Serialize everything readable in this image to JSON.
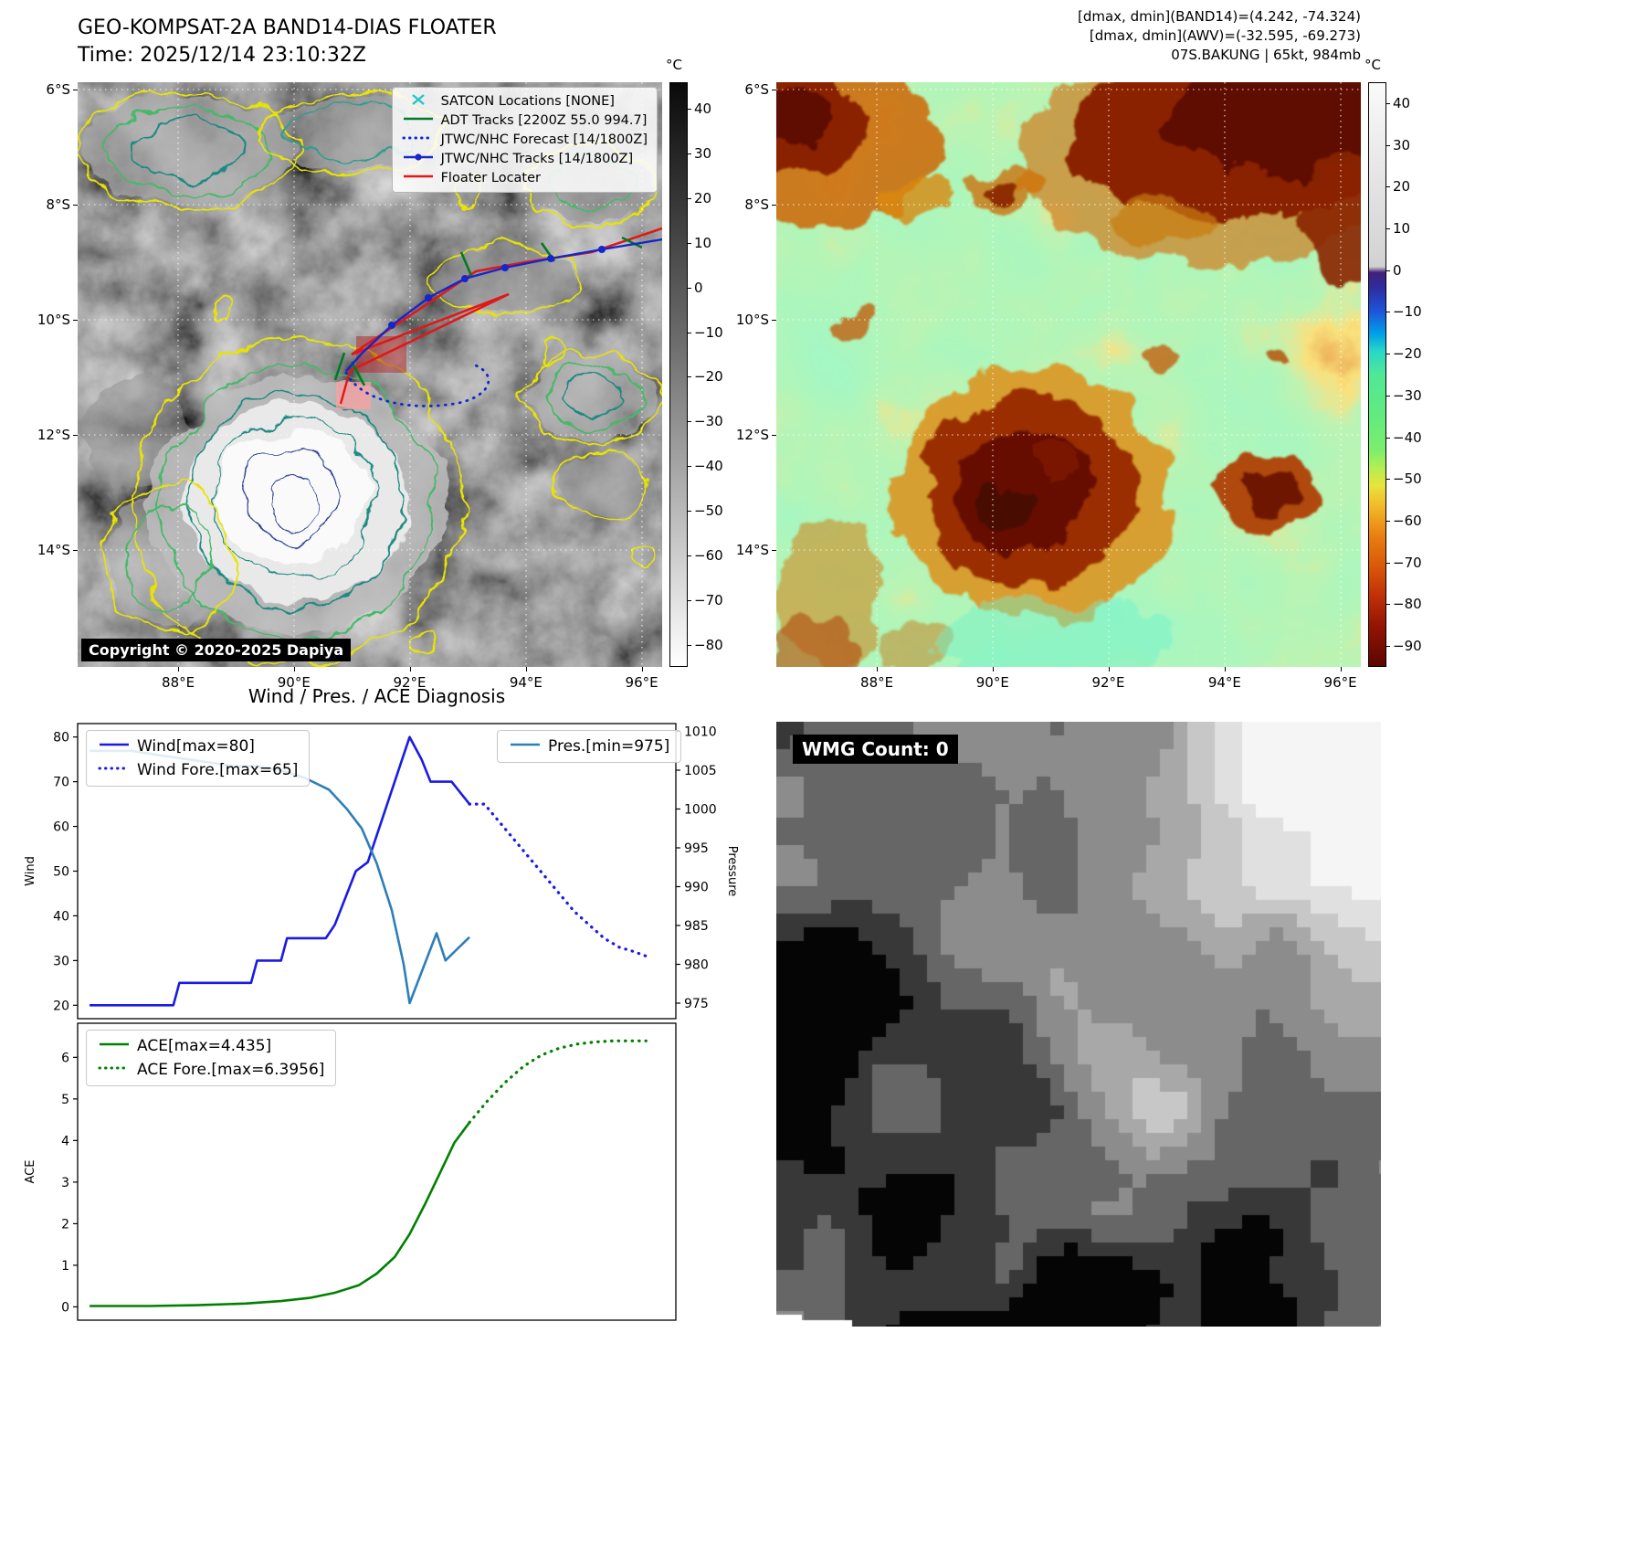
{
  "colors": {
    "wind_line": "#1a1ae6",
    "pres_line": "#2e7eb8",
    "ace_line": "#008000",
    "track_red": "#e01818",
    "track_green": "#007a24",
    "track_blue": "#1426cc",
    "satcon_cyan": "#20c8c8"
  },
  "band14_panel": {
    "title": "GEO-KOMPSAT-2A BAND14-DIAS FLOATER",
    "time_label": "Time: 2025/12/14 23:10:32Z",
    "copyright": "Copyright © 2020-2025 Dapiya",
    "colorbar": {
      "unit": "°C",
      "ticks": [
        40,
        30,
        20,
        10,
        0,
        -10,
        -20,
        -30,
        -40,
        -50,
        -60,
        -70,
        -80
      ]
    },
    "x_ticks": [
      "88°E",
      "90°E",
      "92°E",
      "94°E",
      "96°E"
    ],
    "y_ticks": [
      "6°S",
      "8°S",
      "10°S",
      "12°S",
      "14°S"
    ],
    "legend": [
      {
        "label": "SATCON Locations [NONE]",
        "marker": "cyan-x-marker"
      },
      {
        "label": "ADT Tracks [2200Z 55.0 994.7]",
        "marker": "green-solid-line"
      },
      {
        "label": "JTWC/NHC Forecast [14/1800Z]",
        "marker": "blue-dotted-line"
      },
      {
        "label": "JTWC/NHC Tracks [14/1800Z]",
        "marker": "blue-line-with-dot"
      },
      {
        "label": "Floater Locater",
        "marker": "red-solid-line"
      }
    ]
  },
  "awv_panel": {
    "annotations": [
      "[dmax, dmin](BAND14)=(4.242, -74.324)",
      "[dmax, dmin](AWV)=(-32.595, -69.273)",
      "07S.BAKUNG | 65kt, 984mb"
    ],
    "colorbar": {
      "unit": "°C",
      "ticks": [
        40,
        30,
        20,
        10,
        0,
        -10,
        -20,
        -30,
        -40,
        -50,
        -60,
        -70,
        -80,
        -90
      ]
    },
    "x_ticks": [
      "88°E",
      "90°E",
      "92°E",
      "94°E",
      "96°E"
    ],
    "y_ticks": [
      "6°S",
      "8°S",
      "10°S",
      "12°S",
      "14°S"
    ]
  },
  "wmg_panel": {
    "count_label": "WMG Count: 0"
  },
  "chart_data": [
    {
      "type": "line",
      "title": "Wind / Pres. / ACE Diagnosis",
      "x_range": [
        0,
        1
      ],
      "left_axis": {
        "label": "Wind",
        "lim": [
          17,
          83
        ],
        "ticks": [
          20,
          30,
          40,
          50,
          60,
          70,
          80
        ]
      },
      "right_axis": {
        "label": "Pressure",
        "lim": [
          973,
          1011
        ],
        "ticks": [
          975,
          980,
          985,
          990,
          995,
          1000,
          1005,
          1010
        ]
      },
      "series": [
        {
          "name": "Wind[max=80]",
          "color": "#1a1ae6",
          "style": "solid",
          "axis": "left",
          "x": [
            0.02,
            0.16,
            0.17,
            0.29,
            0.3,
            0.34,
            0.35,
            0.415,
            0.43,
            0.465,
            0.485,
            0.555,
            0.575,
            0.59,
            0.625,
            0.655
          ],
          "y": [
            20,
            20,
            25,
            25,
            30,
            30,
            35,
            35,
            38,
            50,
            52,
            80,
            75,
            70,
            70,
            65
          ]
        },
        {
          "name": "Wind Fore.[max=65]",
          "color": "#1a1ae6",
          "style": "dotted",
          "axis": "left",
          "x": [
            0.655,
            0.68,
            0.705,
            0.73,
            0.755,
            0.78,
            0.805,
            0.83,
            0.855,
            0.88,
            0.905,
            0.93,
            0.95
          ],
          "y": [
            65,
            65,
            61,
            57,
            53,
            49,
            45,
            41,
            38,
            35,
            33,
            32,
            31
          ]
        },
        {
          "name": "Pres.[min=975]",
          "color": "#2e7eb8",
          "style": "solid",
          "axis": "right",
          "x": [
            0.02,
            0.09,
            0.13,
            0.175,
            0.22,
            0.26,
            0.3,
            0.34,
            0.38,
            0.42,
            0.45,
            0.475,
            0.5,
            0.525,
            0.545,
            0.555,
            0.575,
            0.6,
            0.615,
            0.635,
            0.655
          ],
          "y": [
            1007.5,
            1007.5,
            1007,
            1006.5,
            1006,
            1005.5,
            1005.5,
            1005,
            1004,
            1002.5,
            1000,
            997.5,
            993,
            987,
            980,
            975,
            979,
            984,
            980.5,
            982,
            983.5
          ]
        }
      ],
      "legends": [
        [
          "Wind[max=80]",
          "Wind Fore.[max=65]"
        ],
        [
          "Pres.[min=975]"
        ]
      ]
    },
    {
      "type": "line",
      "x_range": [
        0,
        1
      ],
      "left_axis": {
        "label": "ACE",
        "lim": [
          -0.32,
          6.82
        ],
        "ticks": [
          0,
          1,
          2,
          3,
          4,
          5,
          6
        ]
      },
      "series": [
        {
          "name": "ACE[max=4.435]",
          "color": "#008000",
          "style": "solid",
          "axis": "left",
          "x": [
            0.02,
            0.12,
            0.2,
            0.28,
            0.34,
            0.39,
            0.43,
            0.47,
            0.5,
            0.53,
            0.555,
            0.58,
            0.605,
            0.63,
            0.655
          ],
          "y": [
            0.02,
            0.02,
            0.04,
            0.08,
            0.14,
            0.22,
            0.34,
            0.52,
            0.8,
            1.2,
            1.75,
            2.45,
            3.2,
            3.95,
            4.435
          ]
        },
        {
          "name": "ACE Fore.[max=6.3956]",
          "color": "#008000",
          "style": "dotted",
          "axis": "left",
          "x": [
            0.655,
            0.685,
            0.715,
            0.745,
            0.775,
            0.805,
            0.835,
            0.865,
            0.895,
            0.925,
            0.95
          ],
          "y": [
            4.435,
            4.95,
            5.4,
            5.78,
            6.05,
            6.22,
            6.32,
            6.37,
            6.3956,
            6.3956,
            6.3956
          ]
        }
      ],
      "legends": [
        [
          "ACE[max=4.435]",
          "ACE Fore.[max=6.3956]"
        ]
      ]
    }
  ]
}
